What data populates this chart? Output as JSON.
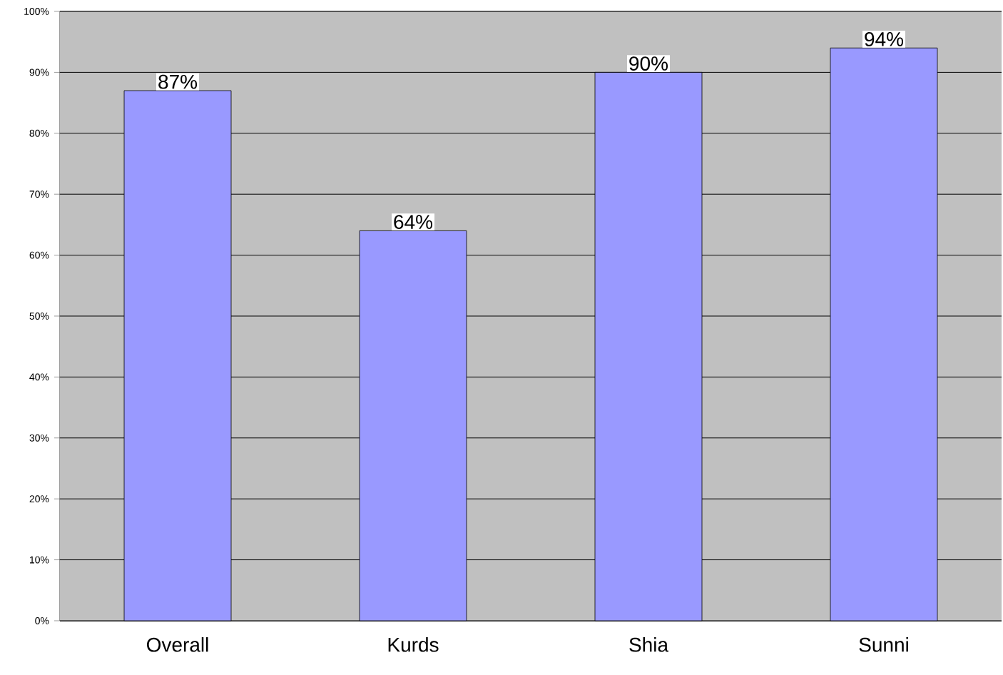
{
  "chart_data": {
    "type": "bar",
    "categories": [
      "Overall",
      "Kurds",
      "Shia",
      "Sunni"
    ],
    "values": [
      87,
      64,
      90,
      94
    ],
    "value_labels": [
      "87%",
      "64%",
      "90%",
      "94%"
    ],
    "color": "#9999ff",
    "ylim": [
      0,
      100
    ],
    "yticks": [
      {
        "value": 0,
        "label": "0%"
      },
      {
        "value": 10,
        "label": "10%"
      },
      {
        "value": 20,
        "label": "20%"
      },
      {
        "value": 30,
        "label": "30%"
      },
      {
        "value": 40,
        "label": "40%"
      },
      {
        "value": 50,
        "label": "50%"
      },
      {
        "value": 60,
        "label": "60%"
      },
      {
        "value": 70,
        "label": "70%"
      },
      {
        "value": 80,
        "label": "80%"
      },
      {
        "value": 90,
        "label": "90%"
      },
      {
        "value": 100,
        "label": "100%"
      }
    ],
    "grid": "y"
  }
}
